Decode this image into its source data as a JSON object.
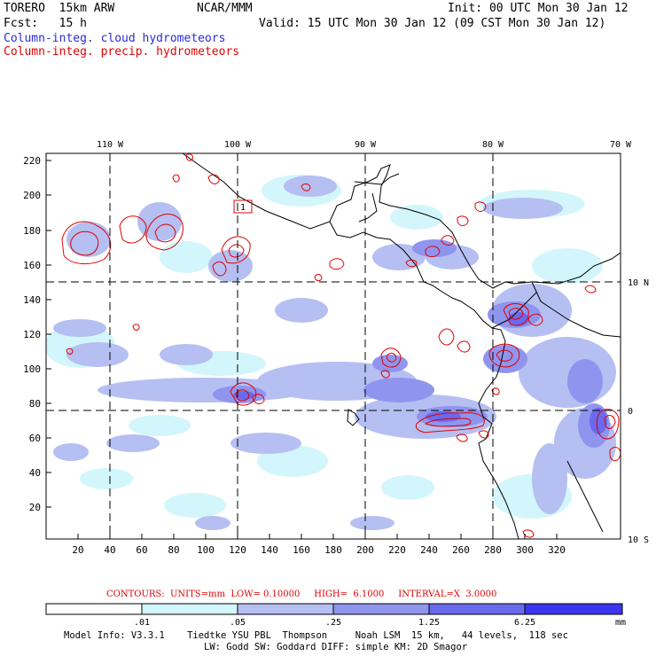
{
  "header": {
    "model": "TORERO  15km ARW",
    "org": "NCAR/MMM",
    "init": "Init: 00 UTC Mon 30 Jan 12",
    "fcst": "Fcst:   15 h",
    "valid": "Valid: 15 UTC Mon 30 Jan 12 (09 CST Mon 30 Jan 12)",
    "legend_cloud": "Column-integ. cloud hydrometeors",
    "legend_precip": "Column-integ. precip. hydrometeors"
  },
  "colors": {
    "cloud_text": "#2a2ad6",
    "precip_contour": "#e00000",
    "shade_levels": [
      "#ffffff",
      "#d2f6fb",
      "#b5bff2",
      "#8f95ee",
      "#6a6aee",
      "#3a36f0"
    ]
  },
  "axes": {
    "y_ticks": [
      "220",
      "200",
      "180",
      "160",
      "140",
      "120",
      "100",
      "80",
      "60",
      "40",
      "20"
    ],
    "x_ticks": [
      "20",
      "40",
      "60",
      "80",
      "100",
      "120",
      "140",
      "160",
      "180",
      "200",
      "220",
      "240",
      "260",
      "280",
      "300",
      "320"
    ],
    "lon_labels": [
      "110 W",
      "100 W",
      "90 W",
      "80 W",
      "70 W"
    ],
    "lat_labels": [
      "10 N",
      "0",
      "10 S"
    ]
  },
  "box_label": "1",
  "contour_info": {
    "label": "CONTOURS:  UNITS=mm  LOW= 0.10000     HIGH=  6.1000     INTERVAL=X  3.0000"
  },
  "colorbar": {
    "ticks": [
      ".01",
      ".05",
      ".25",
      "1.25",
      "6.25"
    ],
    "units": "mm"
  },
  "footer": {
    "line1": "Model Info: V3.3.1    Tiedtke YSU PBL  Thompson     Noah LSM  15 km,   44 levels,  118 sec",
    "line2": "LW: Godd SW: Goddard DIFF: simple KM: 2D Smagor"
  }
}
